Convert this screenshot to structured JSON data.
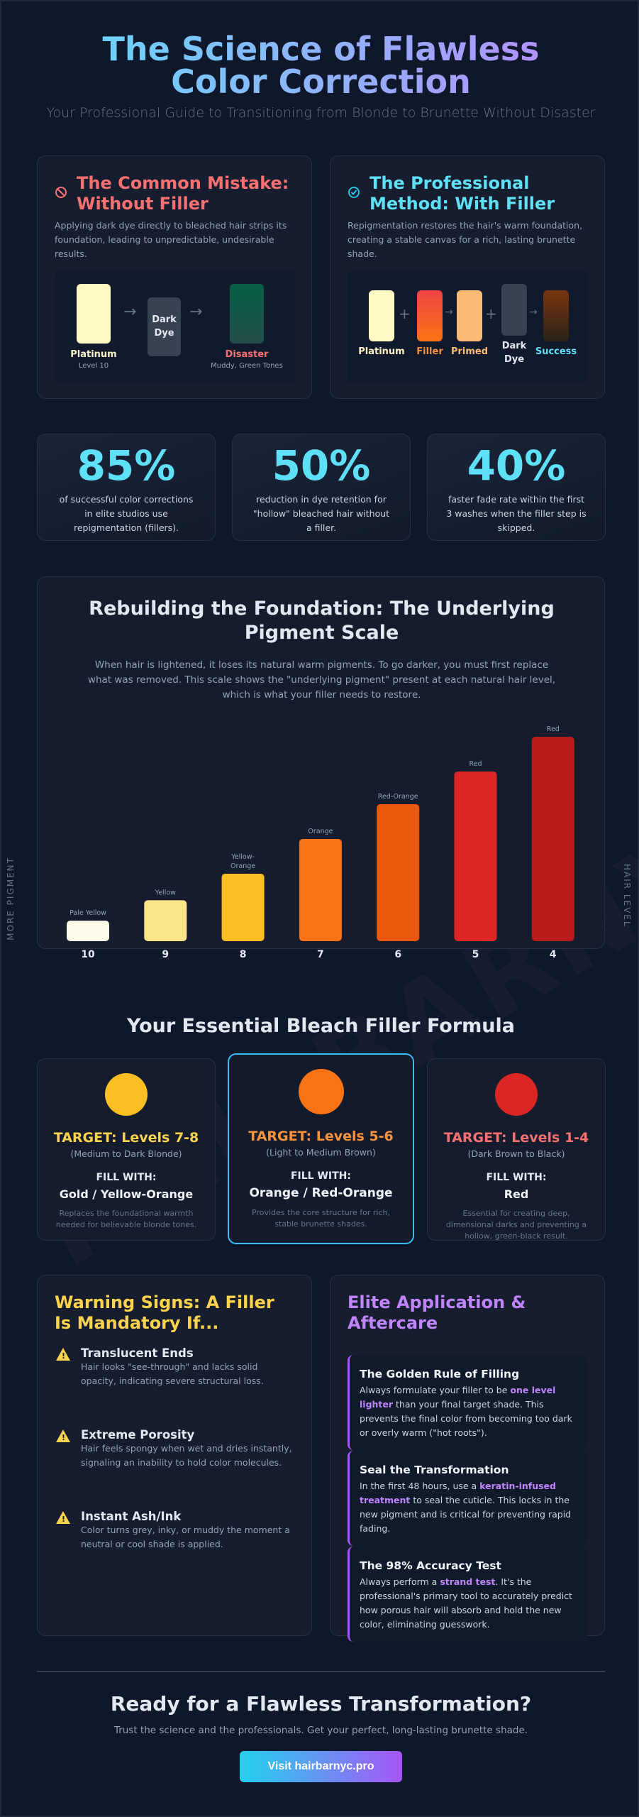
{
  "watermark": "HAIRBARNYC.PRO",
  "header": {
    "title": "The Science of Flawless Color Correction",
    "subtitle": "Your Professional Guide to Transitioning from Blonde to Brunette Without Disaster"
  },
  "mistake": {
    "icon": "prohibited-icon",
    "title": "The Common Mistake: Without Filler",
    "desc": "Applying dark dye directly to bleached hair strips its foundation, leading to unpredictable, undesirable results.",
    "platinum": "Platinum",
    "platinum_sub": "Level 10",
    "dye": "Dark Dye",
    "disaster": "Disaster",
    "disaster_sub": "Muddy, Green Tones",
    "colors": {
      "platinum": "#fef9c3",
      "dye": "#374151",
      "disaster": "#065f46"
    }
  },
  "method": {
    "icon": "check-circle-icon",
    "title": "The Professional Method: With Filler",
    "desc": "Repigmentation restores the hair's warm foundation, creating a stable canvas for a rich, lasting brunette shade.",
    "steps": [
      "Platinum",
      "Filler",
      "Primed",
      "Dark Dye",
      "Success"
    ]
  },
  "stats": [
    {
      "value": "85%",
      "text": "of successful color corrections in elite studios use repigmentation (fillers)."
    },
    {
      "value": "50%",
      "text": "reduction in dye retention for \"hollow\" bleached hair without a filler."
    },
    {
      "value": "40%",
      "text": "faster fade rate within the first 3 washes when the filler step is skipped."
    }
  ],
  "chart_section": {
    "title": "Rebuilding the Foundation: The Underlying Pigment Scale",
    "desc": "When hair is lightened, it loses its natural warm pigments. To go darker, you must first replace what was removed. This scale shows the \"underlying pigment\" present at each natural hair level, which is what your filler needs to restore."
  },
  "chart_data": {
    "type": "bar",
    "categories": [
      "10",
      "9",
      "8",
      "7",
      "6",
      "5",
      "4"
    ],
    "labels": [
      "Pale Yellow",
      "Yellow",
      "Yellow-Orange",
      "Orange",
      "Red-Orange",
      "Red",
      "Red"
    ],
    "values": [
      10,
      20,
      33,
      50,
      67,
      83,
      100
    ],
    "colors": [
      "#fefce8",
      "#fde68a",
      "#fbbf24",
      "#f97316",
      "#ea580c",
      "#dc2626",
      "#b91c1c"
    ],
    "ylabel": "MORE PIGMENT",
    "xlabel": "HAIR LEVEL",
    "grid": false
  },
  "formula": {
    "title": "Your Essential Bleach Filler Formula",
    "cards": [
      {
        "target": "TARGET: Levels 7-8",
        "range": "(Medium to Dark Blonde)",
        "fill_label": "FILL WITH:",
        "fill": "Gold / Yellow-Orange",
        "desc": "Replaces the foundational warmth needed for believable blonde tones.",
        "color": "#fbbf24",
        "text_color": "#fcd34d"
      },
      {
        "target": "TARGET: Levels 5-6",
        "range": "(Light to Medium Brown)",
        "fill_label": "FILL WITH:",
        "fill": "Orange / Red-Orange",
        "desc": "Provides the core structure for rich, stable brunette shades.",
        "color": "#f97316",
        "text_color": "#fb923c"
      },
      {
        "target": "TARGET: Levels 1-4",
        "range": "(Dark Brown to Black)",
        "fill_label": "FILL WITH:",
        "fill": "Red",
        "desc": "Essential for creating deep, dimensional darks and preventing a hollow, green-black result.",
        "color": "#dc2626",
        "text_color": "#f87171"
      }
    ]
  },
  "warnings": {
    "title": "Warning Signs: A Filler Is Mandatory If...",
    "items": [
      {
        "title": "Translucent Ends",
        "text": "Hair looks \"see-through\" and lacks solid opacity, indicating severe structural loss."
      },
      {
        "title": "Extreme Porosity",
        "text": "Hair feels spongy when wet and dries instantly, signaling an inability to hold color molecules."
      },
      {
        "title": "Instant Ash/Ink",
        "text": "Color turns grey, inky, or muddy the moment a neutral or cool shade is applied."
      }
    ]
  },
  "aftercare": {
    "title": "Elite Application & Aftercare",
    "tips": [
      {
        "title": "The Golden Rule of Filling",
        "pre": "Always formulate your filler to be ",
        "bold": "one level lighter",
        "post": " than your final target shade. This prevents the final color from becoming too dark or overly warm (\"hot roots\")."
      },
      {
        "title": "Seal the Transformation",
        "pre": "In the first 48 hours, use a ",
        "bold": "keratin-infused treatment",
        "post": " to seal the cuticle. This locks in the new pigment and is critical for preventing rapid fading."
      },
      {
        "title": "The 98% Accuracy Test",
        "pre": "Always perform a ",
        "bold": "strand test",
        "post": ". It's the professional's primary tool to accurately predict how porous hair will absorb and hold the new color, eliminating guesswork."
      }
    ]
  },
  "cta": {
    "title": "Ready for a Flawless Transformation?",
    "text": "Trust the science and the professionals. Get your perfect, long-lasting brunette shade.",
    "button": "Visit hairbarnyc.pro"
  }
}
